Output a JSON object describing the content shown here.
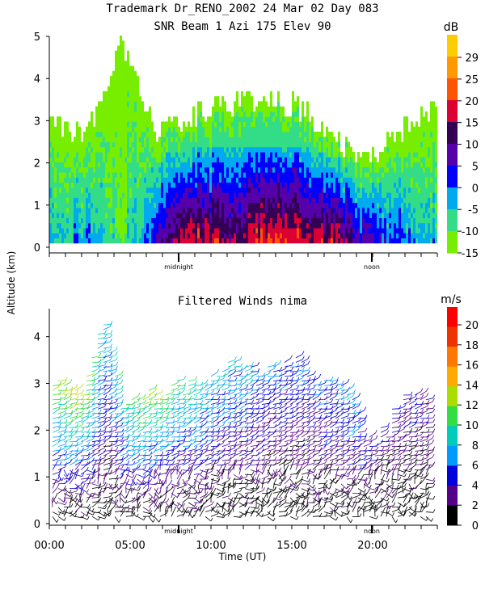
{
  "header": {
    "line1": "Trademark Dr_RENO_2002  24 Mar 02 Day 083",
    "line2": "SNR Beam 1 Azi 175 Elev 90"
  },
  "chart_data": [
    {
      "type": "heatmap",
      "title": "SNR Beam 1 Azi 175 Elev 90",
      "ylabel": "Altitude (km)",
      "ylim": [
        0,
        5
      ],
      "y_ticks": [
        "0",
        "1",
        "2",
        "3",
        "4",
        "5"
      ],
      "x_markers": [
        "midnight",
        "noon"
      ],
      "colorbar": {
        "unit": "dB",
        "ticks": [
          "29",
          "25",
          "20",
          "15",
          "10",
          "5",
          "0",
          "-5",
          "-10",
          "-15"
        ],
        "colors": [
          "#ffcc00",
          "#ff9900",
          "#ff5500",
          "#dd0033",
          "#330055",
          "#5500aa",
          "#0000ff",
          "#00aaee",
          "#33dd88",
          "#77ee00"
        ]
      },
      "series": [
        {
          "x": [
            0,
            2,
            4,
            6,
            8,
            10,
            12,
            14,
            16,
            18,
            20,
            22
          ],
          "top_km": [
            3.0,
            2.6,
            4.8,
            2.7,
            3.1,
            3.3,
            3.5,
            3.3,
            2.6,
            2.0,
            2.8,
            3.3
          ],
          "peak_snr_db": [
            -5,
            0,
            -10,
            5,
            20,
            15,
            20,
            20,
            18,
            5,
            0,
            -5
          ]
        }
      ]
    },
    {
      "type": "scatter",
      "title": "Filtered Winds nima",
      "xlabel": "Time (UT)",
      "ylabel": "Altitude (km)",
      "ylim": [
        0,
        4.6
      ],
      "y_ticks": [
        "0",
        "1",
        "2",
        "3",
        "4"
      ],
      "x_ticks": [
        "00:00",
        "05:00",
        "10:00",
        "15:00",
        "20:00"
      ],
      "x_markers": [
        "midnight",
        "noon"
      ],
      "colorbar": {
        "unit": "m/s",
        "ticks": [
          "20",
          "18",
          "16",
          "14",
          "12",
          "10",
          "8",
          "6",
          "4",
          "2",
          "0"
        ],
        "colors": [
          "#ff0000",
          "#ee3300",
          "#ff7700",
          "#ffaa00",
          "#aadd00",
          "#33dd44",
          "#00ccbb",
          "#0099ff",
          "#0000dd",
          "#550088",
          "#000000"
        ]
      },
      "series": [
        {
          "x": [
            0,
            1,
            2,
            3,
            4,
            5,
            6,
            7,
            8,
            9,
            10,
            11,
            12,
            13,
            14,
            15,
            16,
            17,
            18,
            19,
            20,
            21,
            22
          ],
          "top_km": [
            3.0,
            3.0,
            2.9,
            4.3,
            2.6,
            2.7,
            2.8,
            2.9,
            3.0,
            3.1,
            3.3,
            3.4,
            3.2,
            3.4,
            3.5,
            3.2,
            3.0,
            2.9,
            1.7,
            2.0,
            2.8,
            2.8,
            2.8
          ],
          "max_speed_ms": [
            12,
            14,
            12,
            8,
            10,
            12,
            12,
            10,
            10,
            8,
            8,
            8,
            6,
            6,
            6,
            6,
            6,
            8,
            4,
            4,
            4,
            4,
            4
          ]
        }
      ]
    }
  ]
}
